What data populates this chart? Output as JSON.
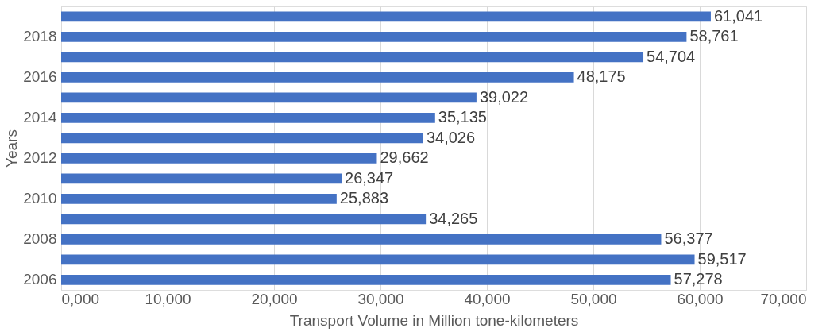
{
  "chart_data": {
    "type": "bar",
    "orientation": "horizontal",
    "xlabel": "Transport Volume in Million tone-kilometers",
    "ylabel": "Years",
    "categories": [
      null,
      "2018",
      null,
      "2016",
      null,
      "2014",
      null,
      "2012",
      null,
      "2010",
      null,
      "2008",
      null,
      "2006"
    ],
    "values": [
      61041,
      58761,
      54704,
      48175,
      39022,
      35135,
      34026,
      29662,
      26347,
      25883,
      34265,
      56377,
      59517,
      57278
    ],
    "value_labels": [
      "61,041",
      "58,761",
      "54,704",
      "48,175",
      "39,022",
      "35,135",
      "34,026",
      "29,662",
      "26,347",
      "25,883",
      "34,265",
      "56,377",
      "59,517",
      "57,278"
    ],
    "color": "#4472c4",
    "xlim": [
      0,
      70000
    ],
    "xticks": [
      {
        "value": 0,
        "label": "0,000"
      },
      {
        "value": 10000,
        "label": "10,000"
      },
      {
        "value": 20000,
        "label": "20,000"
      },
      {
        "value": 30000,
        "label": "30,000"
      },
      {
        "value": 40000,
        "label": "40,000"
      },
      {
        "value": 50000,
        "label": "50,000"
      },
      {
        "value": 60000,
        "label": "60,000"
      },
      {
        "value": 70000,
        "label": "70,000"
      }
    ],
    "grid": "x"
  }
}
